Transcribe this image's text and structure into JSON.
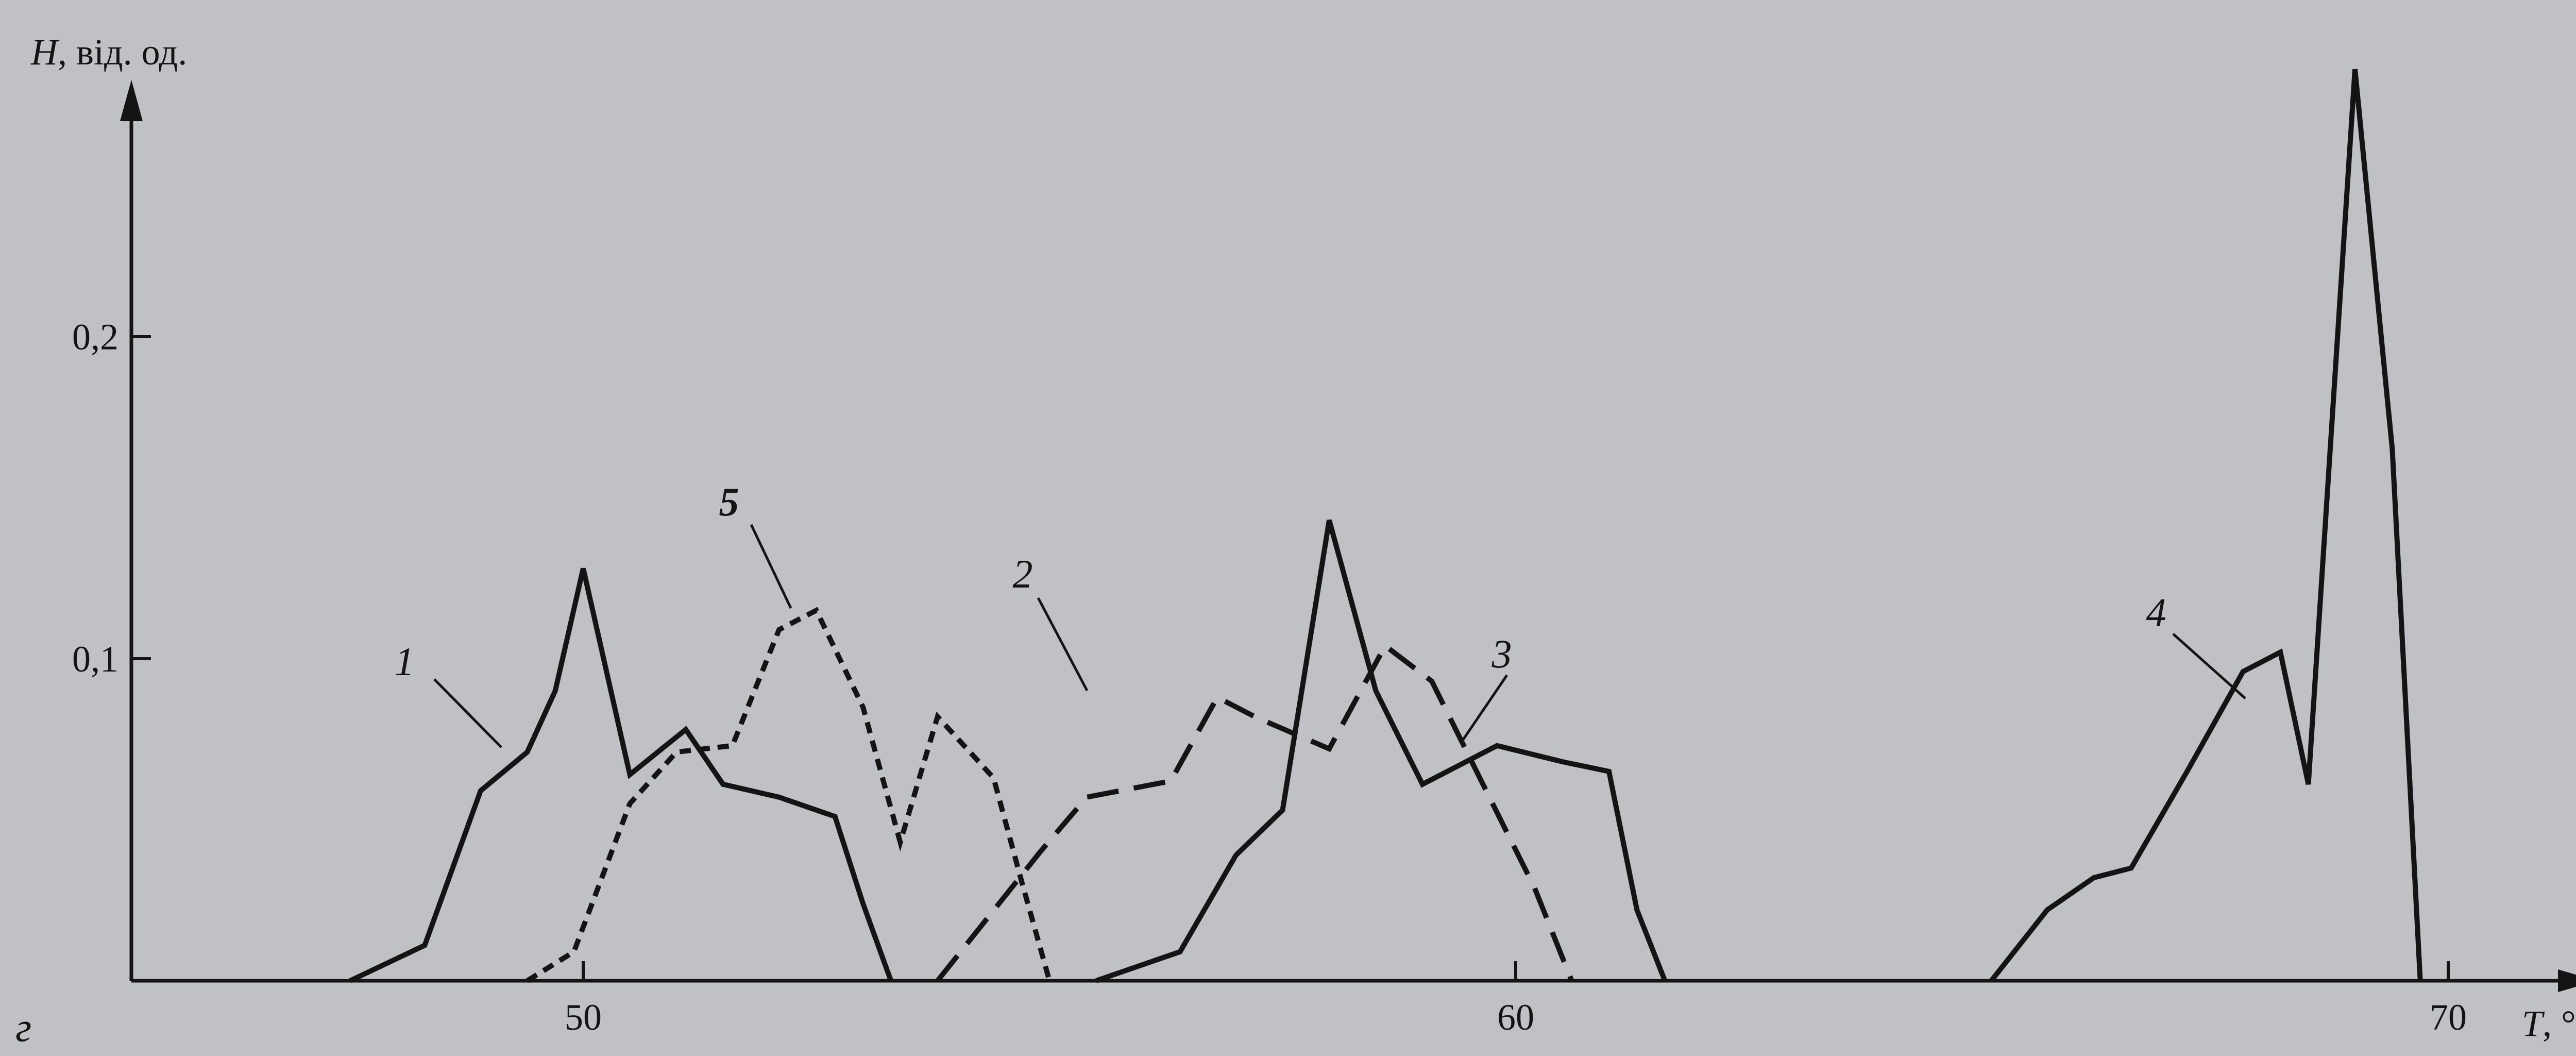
{
  "chart_data": {
    "type": "line",
    "panel_label": "г",
    "ylabel_var": "H",
    "ylabel_unit": ", від. од.",
    "xlabel_var": "T",
    "xlabel_unit": ", °C",
    "xlim": [
      40,
      71.5
    ],
    "ylim": [
      0,
      0.285
    ],
    "xticks": [
      50,
      60,
      70
    ],
    "xtick_labels": [
      "50",
      "60",
      "70"
    ],
    "yticks": [
      0.1,
      0.2
    ],
    "ytick_labels": [
      "0,1",
      "0,2"
    ],
    "grid": false,
    "series": [
      {
        "name": "1",
        "style": "solid",
        "points": [
          [
            47.5,
            0
          ],
          [
            48.3,
            0.011
          ],
          [
            48.9,
            0.059
          ],
          [
            49.4,
            0.071
          ],
          [
            49.7,
            0.09
          ],
          [
            50.0,
            0.128
          ],
          [
            50.5,
            0.064
          ],
          [
            51.1,
            0.078
          ],
          [
            51.5,
            0.061
          ],
          [
            52.1,
            0.057
          ],
          [
            52.7,
            0.051
          ],
          [
            53.0,
            0.024
          ],
          [
            53.3,
            0
          ]
        ]
      },
      {
        "name": "2",
        "style": "dashed",
        "points": [
          [
            53.8,
            0
          ],
          [
            54.9,
            0.04
          ],
          [
            55.4,
            0.057
          ],
          [
            56.3,
            0.062
          ],
          [
            56.8,
            0.088
          ],
          [
            57.2,
            0.082
          ],
          [
            58.0,
            0.072
          ],
          [
            58.6,
            0.104
          ],
          [
            59.1,
            0.093
          ],
          [
            59.7,
            0.058
          ],
          [
            60.2,
            0.029
          ],
          [
            60.6,
            0
          ]
        ]
      },
      {
        "name": "3",
        "style": "solid",
        "points": [
          [
            55.5,
            0
          ],
          [
            56.4,
            0.009
          ],
          [
            57.0,
            0.039
          ],
          [
            57.5,
            0.053
          ],
          [
            58.0,
            0.143
          ],
          [
            58.5,
            0.09
          ],
          [
            59.0,
            0.061
          ],
          [
            59.8,
            0.073
          ],
          [
            60.5,
            0.068
          ],
          [
            61.0,
            0.065
          ],
          [
            61.3,
            0.022
          ],
          [
            61.6,
            0
          ]
        ]
      },
      {
        "name": "4",
        "style": "solid",
        "points": [
          [
            65.1,
            0
          ],
          [
            65.7,
            0.022
          ],
          [
            66.2,
            0.032
          ],
          [
            66.6,
            0.035
          ],
          [
            67.2,
            0.065
          ],
          [
            67.8,
            0.096
          ],
          [
            68.2,
            0.102
          ],
          [
            68.5,
            0.061
          ],
          [
            69.0,
            0.283
          ],
          [
            69.4,
            0.165
          ],
          [
            69.7,
            0
          ]
        ]
      },
      {
        "name": "5",
        "style": "dotted",
        "points": [
          [
            49.4,
            0
          ],
          [
            49.9,
            0.009
          ],
          [
            50.5,
            0.055
          ],
          [
            51.0,
            0.071
          ],
          [
            51.6,
            0.073
          ],
          [
            52.1,
            0.109
          ],
          [
            52.5,
            0.115
          ],
          [
            53.0,
            0.085
          ],
          [
            53.4,
            0.043
          ],
          [
            53.8,
            0.082
          ],
          [
            54.4,
            0.063
          ],
          [
            54.7,
            0.031
          ],
          [
            55.0,
            0
          ]
        ]
      }
    ]
  }
}
